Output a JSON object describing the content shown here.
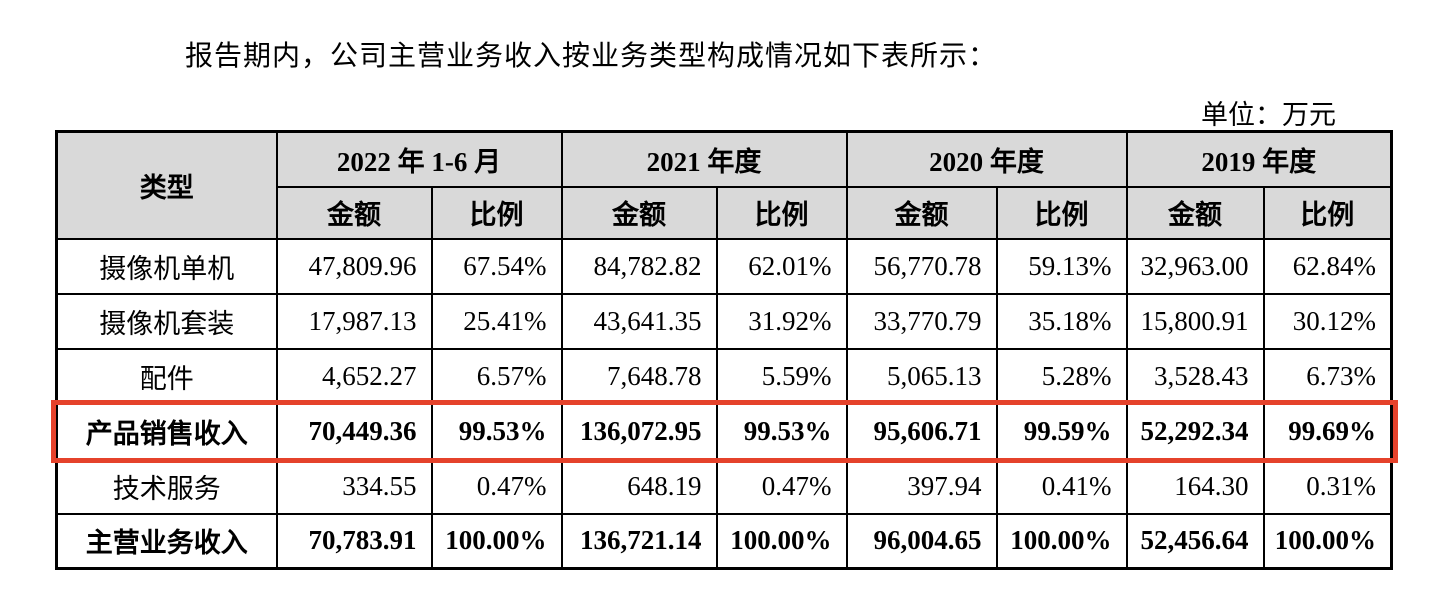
{
  "page": {
    "intro_text": "报告期内，公司主营业务收入按业务类型构成情况如下表所示：",
    "unit_label": "单位：万元"
  },
  "table": {
    "type_header": "类型",
    "period_headers": [
      "2022 年 1-6 月",
      "2021 年度",
      "2020 年度",
      "2019 年度"
    ],
    "sub_headers": {
      "amount": "金额",
      "ratio": "比例"
    },
    "rows": [
      {
        "type": "摄像机单机",
        "bold": false,
        "highlighted": false,
        "values": [
          "47,809.96",
          "67.54%",
          "84,782.82",
          "62.01%",
          "56,770.78",
          "59.13%",
          "32,963.00",
          "62.84%"
        ]
      },
      {
        "type": "摄像机套装",
        "bold": false,
        "highlighted": false,
        "values": [
          "17,987.13",
          "25.41%",
          "43,641.35",
          "31.92%",
          "33,770.79",
          "35.18%",
          "15,800.91",
          "30.12%"
        ]
      },
      {
        "type": "配件",
        "bold": false,
        "highlighted": false,
        "values": [
          "4,652.27",
          "6.57%",
          "7,648.78",
          "5.59%",
          "5,065.13",
          "5.28%",
          "3,528.43",
          "6.73%"
        ]
      },
      {
        "type": "产品销售收入",
        "bold": true,
        "highlighted": true,
        "values": [
          "70,449.36",
          "99.53%",
          "136,072.95",
          "99.53%",
          "95,606.71",
          "99.59%",
          "52,292.34",
          "99.69%"
        ]
      },
      {
        "type": "技术服务",
        "bold": false,
        "highlighted": false,
        "values": [
          "334.55",
          "0.47%",
          "648.19",
          "0.47%",
          "397.94",
          "0.41%",
          "164.30",
          "0.31%"
        ]
      },
      {
        "type": "主营业务收入",
        "bold": true,
        "highlighted": false,
        "values": [
          "70,783.91",
          "100.00%",
          "136,721.14",
          "100.00%",
          "96,004.65",
          "100.00%",
          "52,456.64",
          "100.00%"
        ]
      }
    ],
    "colors": {
      "header_bg": "#d9d9d9",
      "highlight_border": "#e5422b",
      "table_border": "#000000"
    }
  }
}
